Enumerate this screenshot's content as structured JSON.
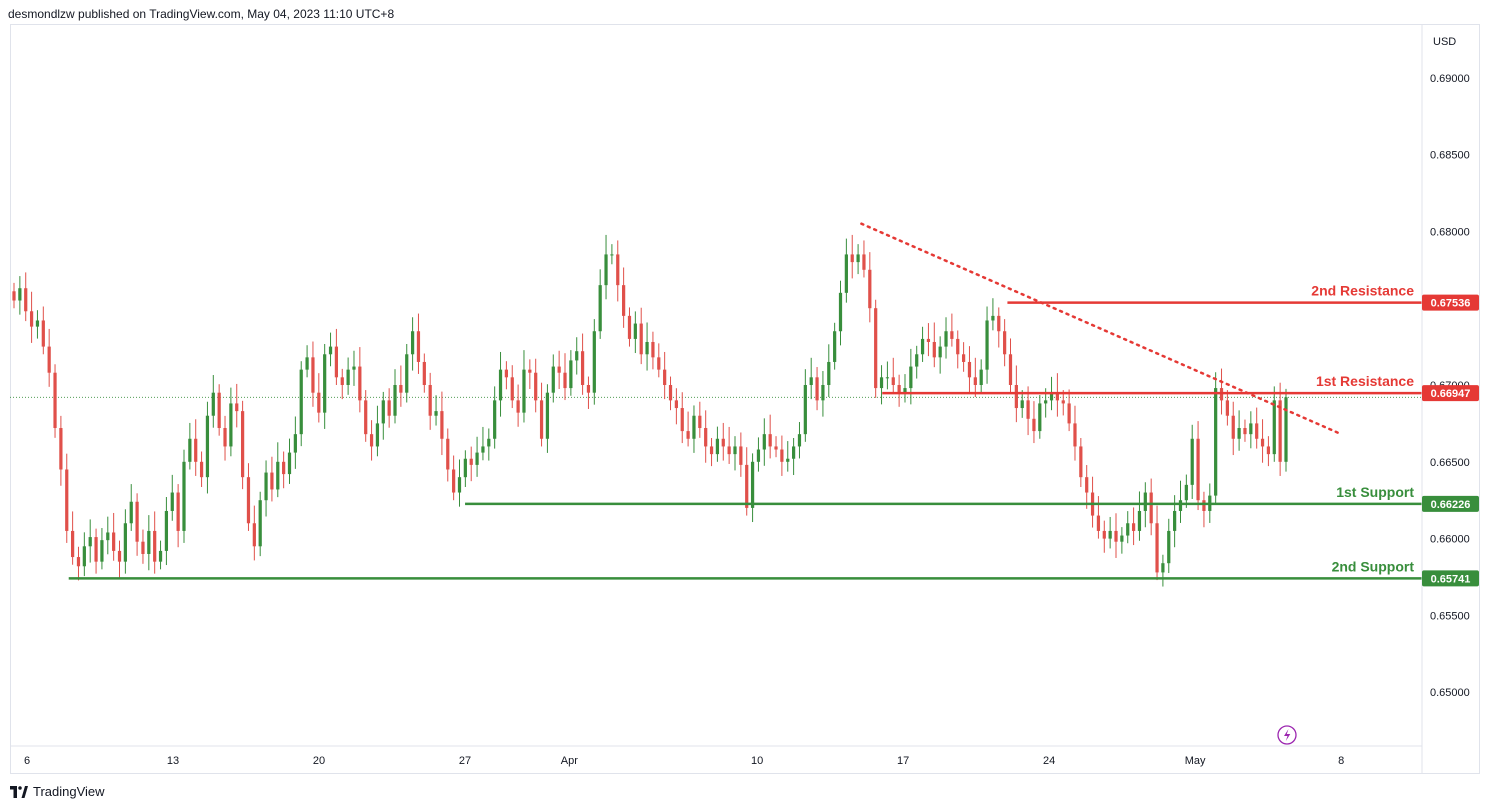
{
  "header": {
    "publisher_line": "desmondlzw published on TradingView.com, May 04, 2023 11:10 UTC+8"
  },
  "footer": {
    "brand": "TradingView",
    "logo_icon": "tradingview-logo-icon"
  },
  "colors": {
    "up": "#388e3c",
    "down": "#e0504a",
    "resistance": "#e53935",
    "support": "#388e3c",
    "grid": "#e0e3eb",
    "axis_text": "#131722",
    "current_price_line": "#388e3c"
  },
  "chart_data": {
    "type": "candlestick",
    "currency": "USD",
    "y_axis": {
      "range": [
        0.6465,
        0.6935
      ],
      "ticks": [
        "0.69000",
        "0.68500",
        "0.68000",
        "0.67000",
        "0.66500",
        "0.66000",
        "0.65500",
        "0.65000"
      ]
    },
    "x_axis": {
      "ticks": [
        "6",
        "13",
        "20",
        "27",
        "Apr",
        "10",
        "17",
        "24",
        "May",
        "8"
      ]
    },
    "current_price": 0.6692,
    "levels": [
      {
        "name": "2nd Resistance",
        "value": 0.67536,
        "text": "0.67536",
        "kind": "resistance",
        "start_date": "2023-04-22"
      },
      {
        "name": "1st Resistance",
        "value": 0.66947,
        "text": "0.66947",
        "kind": "resistance",
        "start_date": "2023-04-16"
      },
      {
        "name": "1st Support",
        "value": 0.66226,
        "text": "0.66226",
        "kind": "support",
        "start_date": "2023-03-27"
      },
      {
        "name": "2nd Support",
        "value": 0.65741,
        "text": "0.65741",
        "kind": "support",
        "start_date": "2023-03-08"
      }
    ],
    "trendline": {
      "style": "dotted",
      "points": [
        [
          "2023-04-15",
          0.6805
        ],
        [
          "2023-05-08",
          0.6668
        ]
      ]
    },
    "candles_4h": [
      0.6755,
      0.6763,
      0.6748,
      0.6738,
      0.6742,
      0.6725,
      0.6708,
      0.6672,
      0.6645,
      0.6605,
      0.6588,
      0.6582,
      0.6595,
      0.6601,
      0.6585,
      0.6599,
      0.6604,
      0.6592,
      0.6585,
      0.661,
      0.6624,
      0.6598,
      0.659,
      0.6605,
      0.6585,
      0.6592,
      0.6618,
      0.663,
      0.6605,
      0.665,
      0.6665,
      0.665,
      0.664,
      0.668,
      0.6695,
      0.6672,
      0.666,
      0.6688,
      0.6683,
      0.664,
      0.661,
      0.6595,
      0.6625,
      0.6643,
      0.6632,
      0.665,
      0.6642,
      0.6656,
      0.6668,
      0.671,
      0.6718,
      0.6695,
      0.6682,
      0.672,
      0.6725,
      0.6705,
      0.67,
      0.671,
      0.6712,
      0.669,
      0.6668,
      0.666,
      0.6675,
      0.669,
      0.668,
      0.67,
      0.6695,
      0.672,
      0.6735,
      0.6715,
      0.67,
      0.668,
      0.6683,
      0.6665,
      0.6645,
      0.663,
      0.664,
      0.6652,
      0.6648,
      0.6656,
      0.666,
      0.6665,
      0.669,
      0.671,
      0.6705,
      0.669,
      0.6682,
      0.671,
      0.6708,
      0.669,
      0.6665,
      0.6695,
      0.6712,
      0.6708,
      0.6698,
      0.6716,
      0.6722,
      0.67,
      0.6695,
      0.6735,
      0.6765,
      0.6785,
      0.6785,
      0.6765,
      0.6745,
      0.673,
      0.674,
      0.672,
      0.6728,
      0.6718,
      0.671,
      0.67,
      0.669,
      0.6685,
      0.667,
      0.6665,
      0.668,
      0.6672,
      0.666,
      0.6655,
      0.6665,
      0.666,
      0.6655,
      0.666,
      0.6648,
      0.662,
      0.665,
      0.6658,
      0.6668,
      0.666,
      0.6658,
      0.665,
      0.6652,
      0.666,
      0.6668,
      0.67,
      0.6705,
      0.669,
      0.67,
      0.6715,
      0.6735,
      0.676,
      0.6785,
      0.678,
      0.6785,
      0.6775,
      0.675,
      0.6698,
      0.6705,
      0.6705,
      0.67,
      0.6695,
      0.6698,
      0.6712,
      0.672,
      0.673,
      0.6728,
      0.6718,
      0.6725,
      0.6735,
      0.673,
      0.672,
      0.6715,
      0.6705,
      0.67,
      0.671,
      0.6742,
      0.6745,
      0.6735,
      0.672,
      0.67,
      0.6685,
      0.669,
      0.6678,
      0.667,
      0.6688,
      0.669,
      0.6695,
      0.669,
      0.6688,
      0.6675,
      0.666,
      0.664,
      0.663,
      0.6615,
      0.6605,
      0.66,
      0.6605,
      0.6598,
      0.6602,
      0.661,
      0.6605,
      0.6618,
      0.663,
      0.661,
      0.6578,
      0.6584,
      0.6605,
      0.6618,
      0.6625,
      0.6635,
      0.6665,
      0.6625,
      0.6618,
      0.6628,
      0.6698,
      0.669,
      0.668,
      0.6665,
      0.6672,
      0.6668,
      0.6675,
      0.6665,
      0.666,
      0.6655,
      0.669,
      0.665,
      0.6692
    ]
  }
}
